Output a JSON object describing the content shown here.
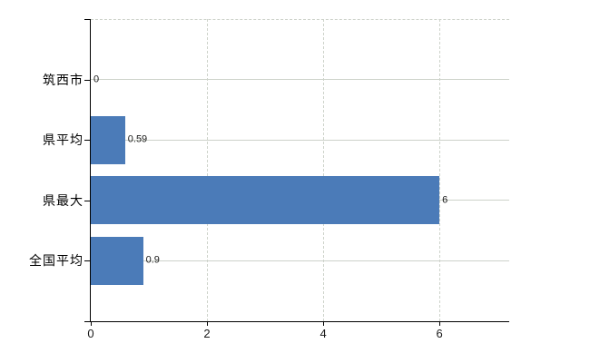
{
  "chart_data": {
    "type": "bar",
    "orientation": "horizontal",
    "title": "",
    "xlabel": "",
    "ylabel": "",
    "categories": [
      "筑西市",
      "県平均",
      "県最大",
      "全国平均"
    ],
    "values": [
      0,
      0.59,
      6,
      0.9
    ],
    "value_labels": [
      "0",
      "0.59",
      "6",
      "0.9"
    ],
    "x_ticks": [
      0,
      2,
      4,
      6
    ],
    "x_tick_labels": [
      "0",
      "2",
      "4",
      "6"
    ],
    "xlim": [
      0,
      7.2
    ],
    "grid": true,
    "grid_style": "vertical-dashed-horizontal-solid",
    "legend": false,
    "colors": {
      "bar": "#4b7bb8",
      "gridline": "#cdd2ca",
      "axis": "#000000",
      "value_label_text": "#1a1a1a",
      "category_label_text": "#000000",
      "background": "#ffffff"
    }
  }
}
